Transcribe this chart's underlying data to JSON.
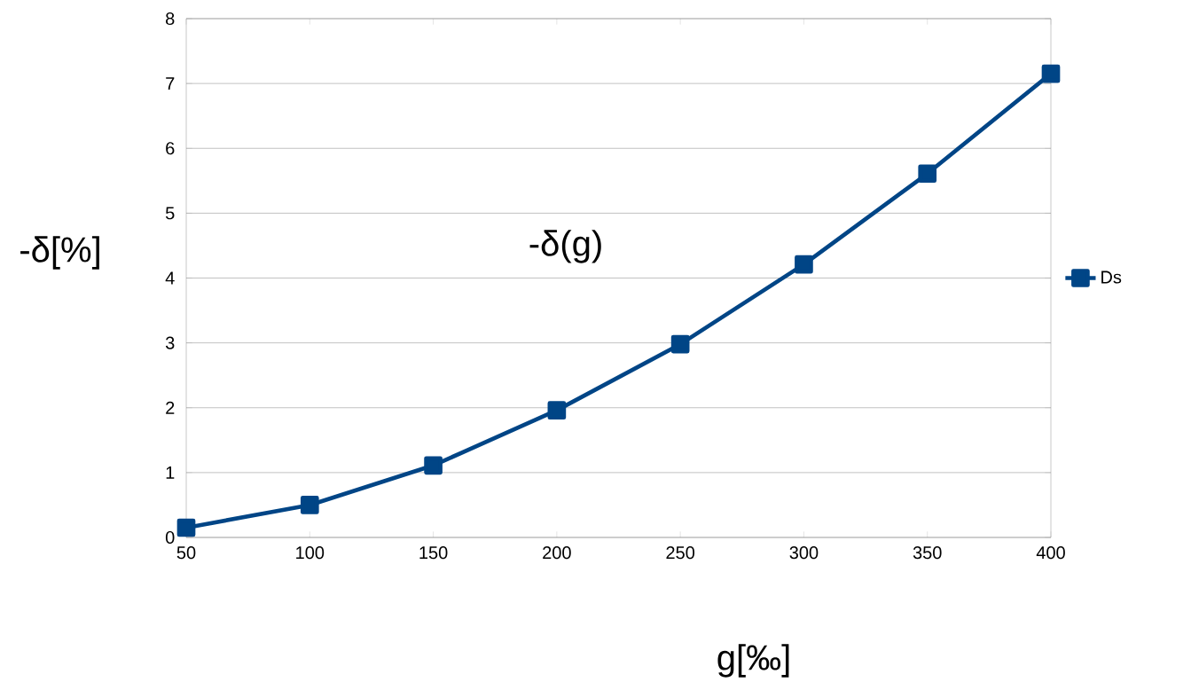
{
  "chart_data": {
    "type": "line",
    "title": "-δ(g)",
    "xlabel": "g[‰]",
    "ylabel": "-δ[%]",
    "x": [
      50,
      100,
      150,
      200,
      250,
      300,
      350,
      400
    ],
    "series": [
      {
        "name": "Ds",
        "color": "#004586",
        "values": [
          0.15,
          0.5,
          1.11,
          1.96,
          2.98,
          4.21,
          5.61,
          7.15
        ]
      }
    ],
    "xlim": [
      50,
      400
    ],
    "xticks": [
      50,
      100,
      150,
      200,
      250,
      300,
      350,
      400
    ],
    "ylim": [
      0,
      8
    ],
    "yticks": [
      0,
      1,
      2,
      3,
      4,
      5,
      6,
      7,
      8
    ],
    "grid": "y",
    "legend": "right",
    "marker": "square",
    "line_style": "solid"
  }
}
